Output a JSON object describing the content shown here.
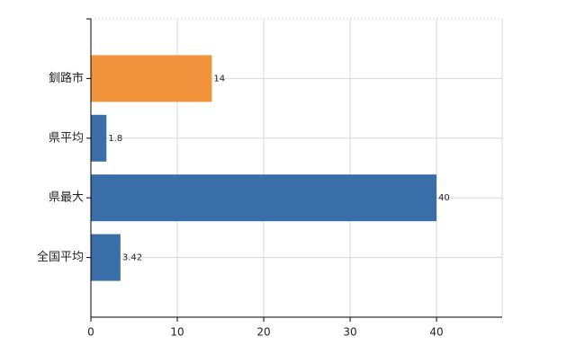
{
  "chart_data": {
    "type": "bar",
    "orientation": "horizontal",
    "categories": [
      "釧路市",
      "県平均",
      "県最大",
      "全国平均"
    ],
    "values": [
      14,
      1.8,
      40,
      3.42
    ],
    "colors": [
      "#f0933a",
      "#3a6ea8",
      "#3a6ea8",
      "#3a6ea8"
    ],
    "xlim": [
      0,
      47.6
    ],
    "xticks": [
      0,
      10,
      20,
      30,
      40
    ],
    "grid": true
  }
}
